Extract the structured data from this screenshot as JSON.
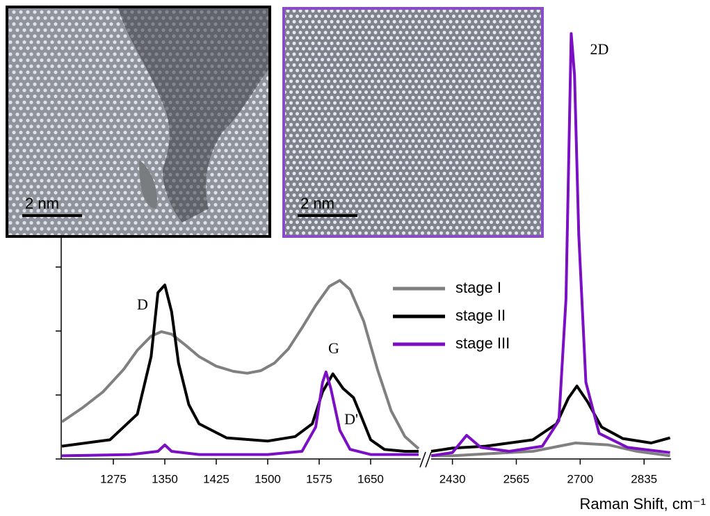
{
  "chart_data": {
    "type": "line",
    "x_label": "Raman Shift, cm⁻¹",
    "panels": [
      {
        "xlim": [
          1199,
          1723
        ],
        "xticks": [
          1275,
          1350,
          1425,
          1500,
          1575,
          1650
        ]
      },
      {
        "xlim": [
          2385,
          2892
        ],
        "xticks": [
          2430,
          2565,
          2700,
          2835
        ]
      }
    ],
    "ylim": [
      0,
      6.75
    ],
    "yticks": [
      0,
      1,
      2,
      3
    ],
    "ytick_labels": false,
    "annotations": [
      "D",
      "G",
      "D'",
      "2D"
    ],
    "series": [
      {
        "name": "stage I",
        "color": "#808080",
        "x": [
          1200,
          1230,
          1260,
          1290,
          1310,
          1330,
          1345,
          1360,
          1380,
          1400,
          1425,
          1450,
          1470,
          1490,
          1510,
          1530,
          1550,
          1570,
          1590,
          1605,
          1620,
          1640,
          1660,
          1680,
          1700,
          1720,
          null,
          2385,
          2430,
          2500,
          2600,
          2690,
          2760,
          2820,
          2890
        ],
        "values": [
          0.58,
          0.8,
          1.05,
          1.4,
          1.7,
          1.92,
          1.99,
          1.95,
          1.78,
          1.6,
          1.45,
          1.37,
          1.34,
          1.38,
          1.5,
          1.72,
          2.05,
          2.4,
          2.7,
          2.79,
          2.65,
          2.15,
          1.4,
          0.75,
          0.35,
          0.16,
          null,
          0.05,
          0.05,
          0.08,
          0.12,
          0.25,
          0.22,
          0.12,
          0.05
        ]
      },
      {
        "name": "stage II",
        "color": "#000000",
        "x": [
          1200,
          1270,
          1310,
          1330,
          1340,
          1350,
          1360,
          1370,
          1385,
          1400,
          1440,
          1500,
          1540,
          1565,
          1580,
          1595,
          1610,
          1625,
          1635,
          1650,
          1670,
          1700,
          1720,
          null,
          2385,
          2430,
          2500,
          2600,
          2650,
          2675,
          2693,
          2715,
          2745,
          2790,
          2850,
          2890
        ],
        "values": [
          0.2,
          0.3,
          0.7,
          1.6,
          2.6,
          2.72,
          2.3,
          1.5,
          0.85,
          0.55,
          0.33,
          0.28,
          0.35,
          0.55,
          1.05,
          1.33,
          1.1,
          0.96,
          0.7,
          0.3,
          0.15,
          0.12,
          0.12,
          null,
          0.12,
          0.17,
          0.2,
          0.3,
          0.55,
          0.95,
          1.14,
          0.9,
          0.5,
          0.32,
          0.25,
          0.33
        ]
      },
      {
        "name": "stage III",
        "color": "#7b0fc4",
        "x": [
          1200,
          1300,
          1340,
          1350,
          1360,
          1400,
          1500,
          1550,
          1570,
          1580,
          1585,
          1592,
          1605,
          1620,
          1650,
          1720,
          null,
          2385,
          2430,
          2460,
          2490,
          2550,
          2620,
          2655,
          2670,
          2681,
          2688,
          2697,
          2712,
          2740,
          2800,
          2890
        ],
        "values": [
          0.05,
          0.07,
          0.12,
          0.22,
          0.12,
          0.07,
          0.07,
          0.12,
          0.5,
          1.2,
          1.36,
          1.1,
          0.45,
          0.15,
          0.07,
          0.07,
          null,
          0.05,
          0.1,
          0.37,
          0.18,
          0.12,
          0.2,
          0.6,
          2.5,
          6.65,
          6.0,
          3.5,
          1.2,
          0.4,
          0.18,
          0.1
        ]
      }
    ]
  },
  "insets": [
    {
      "scale_label": "2 nm"
    },
    {
      "scale_label": "2 nm"
    }
  ]
}
